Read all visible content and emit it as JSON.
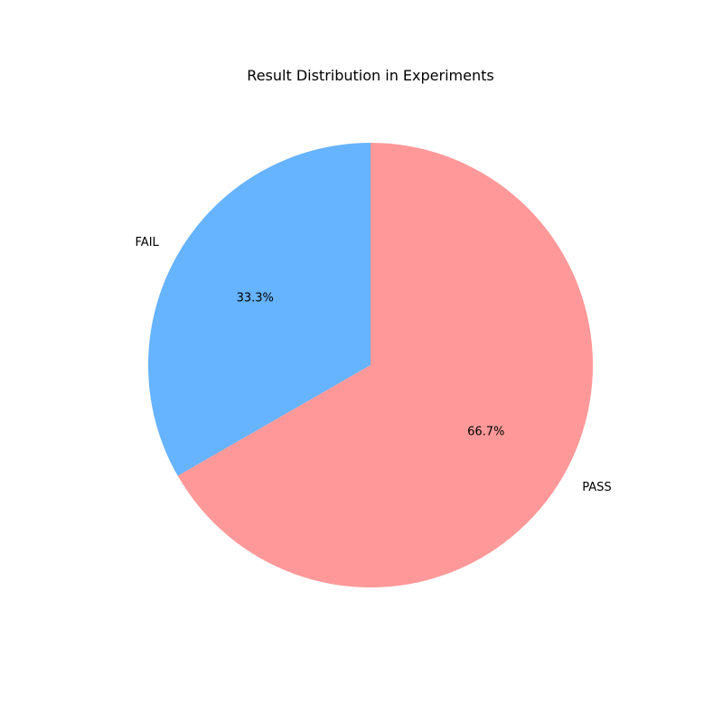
{
  "chart_data": {
    "type": "pie",
    "title": "Result Distribution in Experiments",
    "slices": [
      {
        "label": "FAIL",
        "value": 33.3,
        "pct_label": "33.3%",
        "color": "#66b3ff"
      },
      {
        "label": "PASS",
        "value": 66.7,
        "pct_label": "66.7%",
        "color": "#ff9999"
      }
    ],
    "start_angle_deg": 90,
    "direction": "counterclockwise",
    "legend": "none"
  }
}
